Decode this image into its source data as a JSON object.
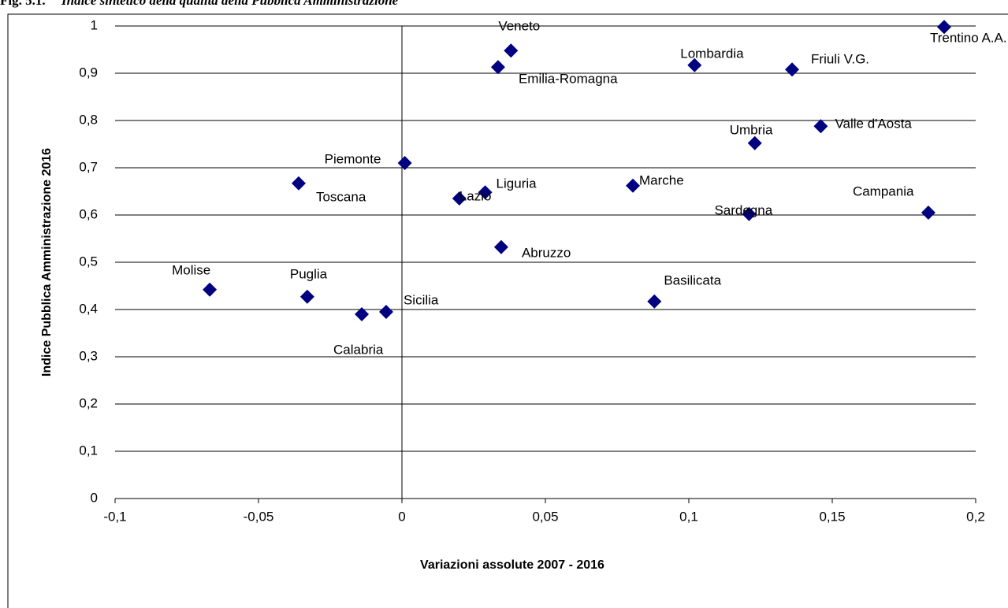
{
  "chart_data": {
    "type": "scatter",
    "figure_label": "Fig. 5.1.",
    "title": "Indice sintetico della qualità della Pubblica Amministrazione",
    "x_label": "Variazioni assolute  2007 - 2016",
    "y_label": "Indice Pubblica Amministrazione 2016",
    "color": "#000080",
    "grid": true,
    "point_labels": [
      "Trentino A.A.",
      "Veneto",
      "Emilia-Romagna",
      "Lombardia",
      "Friuli V.G.",
      "Valle d'Aosta",
      "Umbria",
      "Piemonte",
      "Toscana",
      "Liguria",
      "Lazio",
      "Marche",
      "Abruzzo",
      "Sardegna",
      "Campania",
      "Molise",
      "Puglia",
      "Calabria",
      "Sicilia",
      "Basilicata"
    ],
    "x": [
      0.189,
      0.038,
      0.0335,
      0.102,
      0.136,
      0.146,
      0.123,
      0.001,
      -0.036,
      0.029,
      0.02,
      0.0805,
      0.0346,
      0.121,
      0.1835,
      -0.067,
      -0.033,
      -0.014,
      -0.0055,
      0.088
    ],
    "values": [
      0.998,
      0.948,
      0.913,
      0.917,
      0.908,
      0.788,
      0.752,
      0.71,
      0.667,
      0.648,
      0.635,
      0.662,
      0.532,
      0.602,
      0.605,
      0.442,
      0.427,
      0.39,
      0.395,
      0.417
    ],
    "xlim": [
      -0.1,
      0.2
    ],
    "ylim": [
      0,
      1
    ],
    "xticks": [
      {
        "value": -0.1,
        "label": "-0,1"
      },
      {
        "value": -0.05,
        "label": "-0,05"
      },
      0,
      {
        "value": 0.05,
        "label": "0,05"
      },
      {
        "value": 0.1,
        "label": "0,1"
      },
      {
        "value": 0.15,
        "label": "0,15"
      },
      {
        "value": 0.2,
        "label": "0,2"
      }
    ],
    "yticks": [
      0,
      {
        "value": 0.1,
        "label": "0,1"
      },
      {
        "value": 0.2,
        "label": "0,2"
      },
      {
        "value": 0.3,
        "label": "0,3"
      },
      {
        "value": 0.4,
        "label": "0,4"
      },
      {
        "value": 0.5,
        "label": "0,5"
      },
      {
        "value": 0.6,
        "label": "0,6"
      },
      {
        "value": 0.7,
        "label": "0,7"
      },
      {
        "value": 0.8,
        "label": "0,8"
      },
      {
        "value": 0.9,
        "label": "0,9"
      },
      1
    ]
  }
}
